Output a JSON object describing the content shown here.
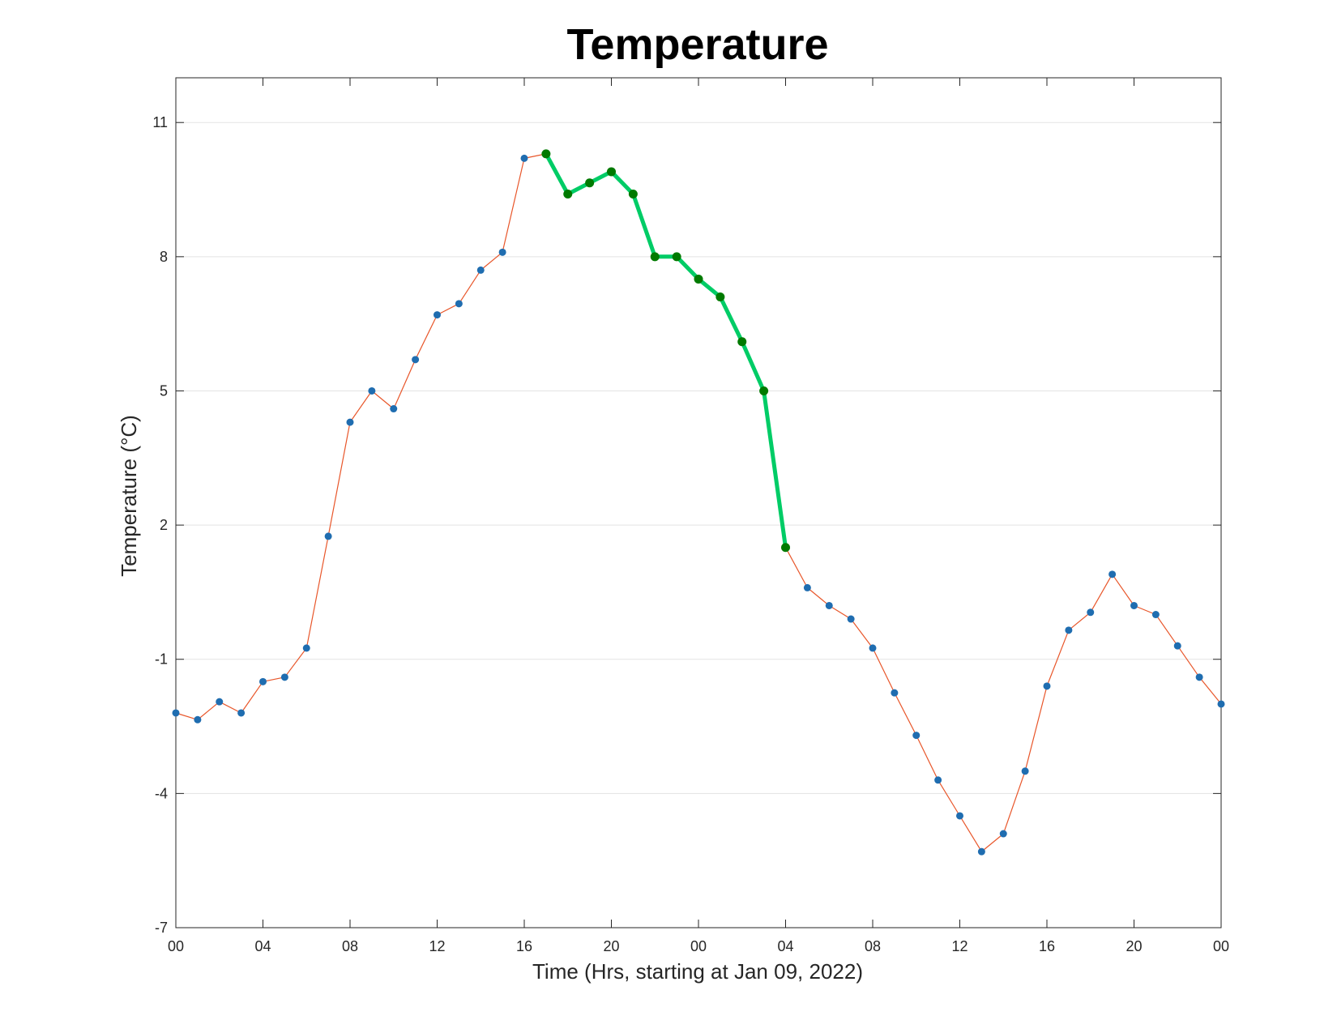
{
  "chart_data": {
    "type": "line",
    "title": "Temperature",
    "xlabel": "Time (Hrs, starting at Jan 09, 2022)",
    "ylabel": "Temperature (°C)",
    "xlim": [
      0,
      48
    ],
    "ylim": [
      -7,
      12
    ],
    "yticks": [
      -7,
      -4,
      -1,
      2,
      5,
      8,
      11
    ],
    "xticks": [
      0,
      4,
      8,
      12,
      16,
      20,
      24,
      28,
      32,
      36,
      40,
      44,
      48
    ],
    "xtick_labels": [
      "00",
      "04",
      "08",
      "12",
      "16",
      "20",
      "00",
      "04",
      "08",
      "12",
      "16",
      "20",
      "00"
    ],
    "grid": "horizontal",
    "series": [
      {
        "color": "#e8562a",
        "marker_color": "#1f6db0",
        "x": [
          0,
          1,
          2,
          3,
          4,
          5,
          6,
          7,
          8,
          9,
          10,
          11,
          12,
          13,
          14,
          15,
          16,
          17,
          18,
          19,
          20,
          21,
          22,
          23,
          24,
          25,
          26,
          27,
          28,
          29,
          30,
          31,
          32,
          33,
          34,
          35,
          36,
          37,
          38,
          39,
          40,
          41,
          42,
          43,
          44,
          45,
          46,
          47,
          48
        ],
        "y": [
          -2.2,
          -2.35,
          -1.95,
          -2.2,
          -1.5,
          -1.4,
          -0.75,
          1.75,
          4.3,
          5.0,
          4.6,
          5.7,
          6.7,
          6.95,
          7.7,
          8.1,
          10.2,
          10.3,
          9.4,
          9.65,
          9.9,
          9.4,
          8.0,
          8.0,
          7.5,
          7.1,
          6.1,
          5.0,
          1.5,
          0.6,
          0.2,
          -0.1,
          -0.75,
          -1.75,
          -2.7,
          -3.7,
          -4.5,
          -5.3,
          -4.9,
          -3.5,
          -1.6,
          -0.35,
          0.05,
          0.9,
          0.2,
          0.0,
          -0.7,
          -1.4,
          -2.0
        ]
      },
      {
        "color": "#00cc66",
        "marker_color": "#007a00",
        "x": [
          17,
          18,
          19,
          20,
          21,
          22,
          23,
          24,
          25,
          26,
          27,
          28
        ],
        "y": [
          10.3,
          9.4,
          9.65,
          9.9,
          9.4,
          8.0,
          8.0,
          7.5,
          7.1,
          6.1,
          5.0,
          1.5
        ]
      }
    ]
  }
}
